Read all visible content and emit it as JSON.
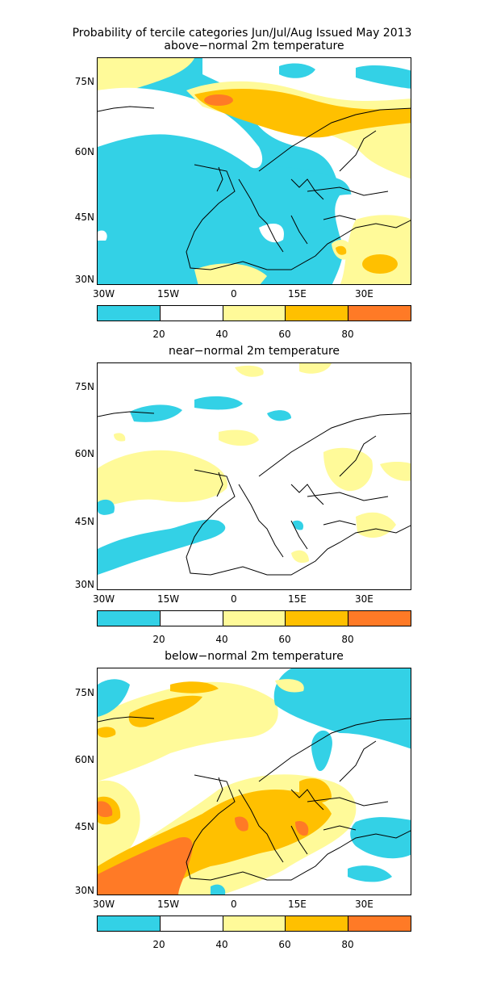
{
  "title_line1": "Probability of tercile categories Jun/Jul/Aug Issued May 2013",
  "colors": {
    "c1": "#33d1e6",
    "c2": "#ffffff",
    "c3": "#fffa99",
    "c4": "#ffc000",
    "c5": "#ff7a26"
  },
  "lat_labels": [
    "75N",
    "60N",
    "45N",
    "30N"
  ],
  "lon_labels": [
    "30W",
    "15W",
    "0",
    "15E",
    "30E"
  ],
  "colorbar_labels": [
    "20",
    "40",
    "60",
    "80"
  ],
  "panels": [
    {
      "title": "above−normal 2m temperature",
      "category": "above-normal"
    },
    {
      "title": "near−normal 2m temperature",
      "category": "near-normal"
    },
    {
      "title": "below−normal 2m temperature",
      "category": "below-normal"
    }
  ]
}
